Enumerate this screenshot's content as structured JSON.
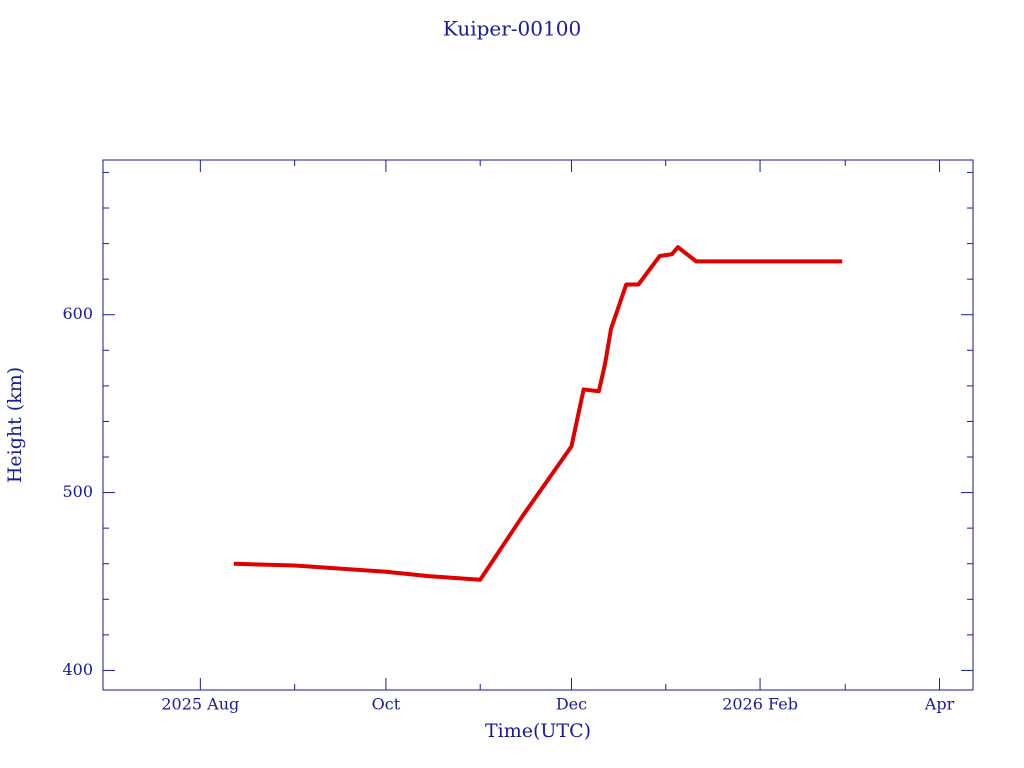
{
  "chart_data": {
    "type": "line",
    "title": "Kuiper-00100",
    "x_label": "Time(UTC)",
    "y_label": "Height (km)",
    "x": [
      "2025-08-12",
      "2025-09-01",
      "2025-10-01",
      "2025-10-15",
      "2025-11-01",
      "2025-11-15",
      "2025-12-01",
      "2025-12-05",
      "2025-12-10",
      "2025-12-12",
      "2025-12-14",
      "2025-12-19",
      "2025-12-23",
      "2025-12-30",
      "2026-01-03",
      "2026-01-05",
      "2026-01-11",
      "2026-02-01",
      "2026-02-28"
    ],
    "series": [
      {
        "name": "Height",
        "color": "#e00000",
        "values": [
          460,
          459,
          455.5,
          453,
          451,
          487,
          526,
          558,
          557,
          572,
          592,
          617,
          617,
          633,
          634,
          638,
          630,
          630,
          630
        ]
      }
    ],
    "xlim": [
      "2025-06-30",
      "2026-04-12"
    ],
    "xticks": [
      {
        "value": "2025-08-01",
        "label": "2025 Aug"
      },
      {
        "value": "2025-10-01",
        "label": "Oct"
      },
      {
        "value": "2025-12-01",
        "label": "Dec"
      },
      {
        "value": "2026-02-01",
        "label": "2026 Feb"
      },
      {
        "value": "2026-04-01",
        "label": "Apr"
      }
    ],
    "x_minor_ticks": [
      "2025-09-01",
      "2025-11-01",
      "2026-01-01",
      "2026-03-01"
    ],
    "ylim": [
      389,
      687
    ],
    "yticks": [
      400,
      500,
      600
    ],
    "y_minor_ticks": [
      420,
      440,
      460,
      480,
      520,
      540,
      560,
      580,
      620,
      640,
      660,
      680
    ]
  }
}
